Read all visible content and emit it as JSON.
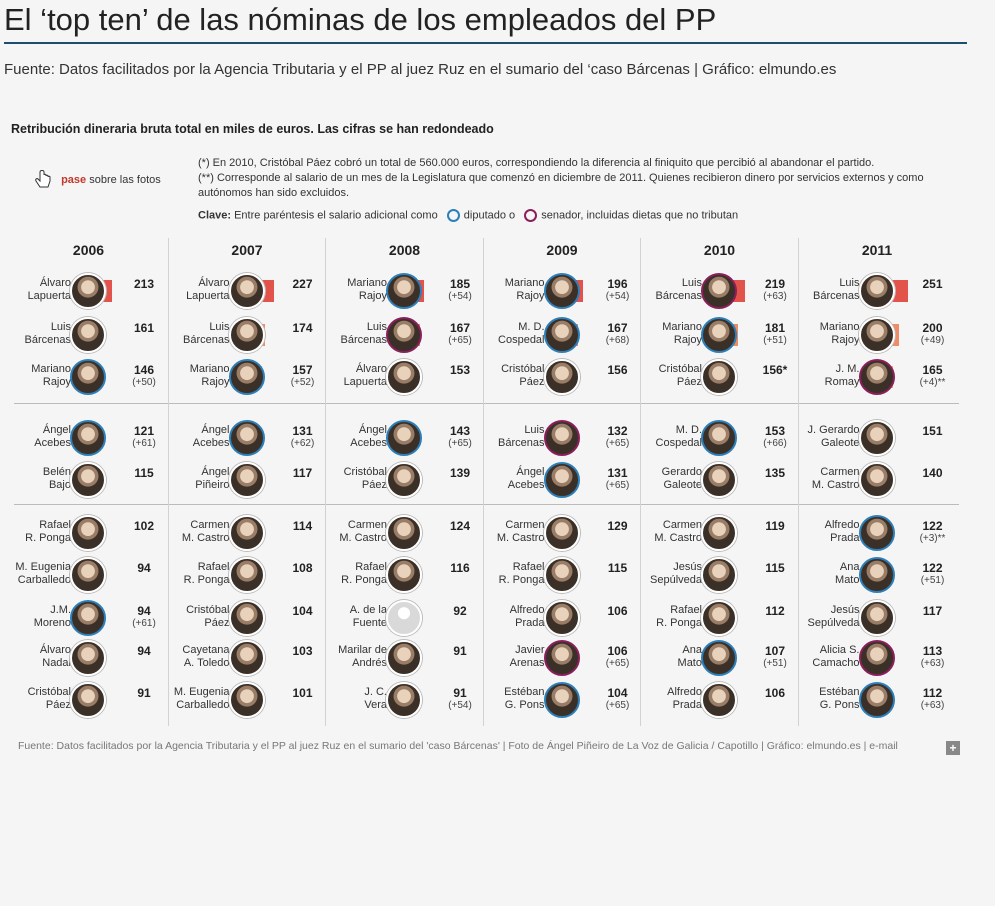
{
  "title": "El ‘top ten’ de las nóminas de los empleados del PP",
  "source_top": "Fuente: Datos facilitados por la Agencia Tributaria y el PP al juez Ruz en el sumario del ‘caso Bárcenas | Gráfico: elmundo.es",
  "subtitle": "Retribución dineraria bruta total en miles de euros. Las cifras se han redondeado",
  "hint": {
    "pase": "pase",
    "rest": "sobre las fotos"
  },
  "notes": [
    "(*) En 2010, Cristóbal Páez cobró un total de 560.000 euros, correspondiendo la diferencia al finiquito que percibió al abandonar el partido.",
    "(**) Corresponde al salario de un mes de la Legislatura que comenzó en diciembre de 2011. Quienes recibieron dinero por servicios externos y como autónomos han sido excluidos."
  ],
  "key": {
    "label": "Clave:",
    "text1": "Entre paréntesis el salario adicional como",
    "diputado": "diputado o",
    "senador": "senador, incluidas dietas que no tributan"
  },
  "footer": "Fuente: Datos facilitados por la Agencia Tributaria y el PP al juez Ruz en el sumario del 'caso Bárcenas' | Foto de Ángel Piñeiro de La Voz de Galicia / Capotillo | Gráfico: elmundo.es | e-mail",
  "plus_label": "+",
  "colors": {
    "rank1": "#e2534b",
    "rank2": "#ee8c68",
    "rank3": "#eab46a",
    "rank_other": "#9c8e80",
    "diputado": "#2c7fb8",
    "senador": "#8b1f5c",
    "rule": "#1f4d6e"
  },
  "chart_data": {
    "type": "bar",
    "unit": "miles de euros",
    "columns": [
      {
        "year": "2006",
        "entries": [
          {
            "name": "Álvaro\nLapuerta",
            "value": 213,
            "display": "213",
            "extra": "",
            "ring": ""
          },
          {
            "name": "Luis\nBárcenas",
            "value": 161,
            "display": "161",
            "extra": "",
            "ring": ""
          },
          {
            "name": "Mariano\nRajoy",
            "value": 146,
            "display": "146",
            "extra": "(+50)",
            "ring": "d"
          },
          {
            "name": "Ángel\nAcebes",
            "value": 121,
            "display": "121",
            "extra": "(+61)",
            "ring": "d"
          },
          {
            "name": "Belén\nBajo",
            "value": 115,
            "display": "115",
            "extra": "",
            "ring": ""
          },
          {
            "name": "Rafael\nR. Ponga",
            "value": 102,
            "display": "102",
            "extra": "",
            "ring": ""
          },
          {
            "name": "M. Eugenia\nCarballedo",
            "value": 94,
            "display": "94",
            "extra": "",
            "ring": ""
          },
          {
            "name": "J.M.\nMoreno",
            "value": 94,
            "display": "94",
            "extra": "(+61)",
            "ring": "d"
          },
          {
            "name": "Álvaro\nNadal",
            "value": 94,
            "display": "94",
            "extra": "",
            "ring": ""
          },
          {
            "name": "Cristóbal\nPáez",
            "value": 91,
            "display": "91",
            "extra": "",
            "ring": ""
          }
        ]
      },
      {
        "year": "2007",
        "entries": [
          {
            "name": "Álvaro\nLapuerta",
            "value": 227,
            "display": "227",
            "extra": "",
            "ring": ""
          },
          {
            "name": "Luis\nBárcenas",
            "value": 174,
            "display": "174",
            "extra": "",
            "ring": ""
          },
          {
            "name": "Mariano\nRajoy",
            "value": 157,
            "display": "157",
            "extra": "(+52)",
            "ring": "d"
          },
          {
            "name": "Ángel\nAcebes",
            "value": 131,
            "display": "131",
            "extra": "(+62)",
            "ring": "d"
          },
          {
            "name": "Ángel\nPiñeiro",
            "value": 117,
            "display": "117",
            "extra": "",
            "ring": ""
          },
          {
            "name": "Carmen\nM. Castro",
            "value": 114,
            "display": "114",
            "extra": "",
            "ring": ""
          },
          {
            "name": "Rafael\nR. Ponga",
            "value": 108,
            "display": "108",
            "extra": "",
            "ring": ""
          },
          {
            "name": "Cristóbal\nPáez",
            "value": 104,
            "display": "104",
            "extra": "",
            "ring": ""
          },
          {
            "name": "Cayetana\nA. Toledo",
            "value": 103,
            "display": "103",
            "extra": "",
            "ring": ""
          },
          {
            "name": "M. Eugenia\nCarballedo",
            "value": 101,
            "display": "101",
            "extra": "",
            "ring": ""
          }
        ]
      },
      {
        "year": "2008",
        "entries": [
          {
            "name": "Mariano\nRajoy",
            "value": 185,
            "display": "185",
            "extra": "(+54)",
            "ring": "d"
          },
          {
            "name": "Luis\nBárcenas",
            "value": 167,
            "display": "167",
            "extra": "(+65)",
            "ring": "s"
          },
          {
            "name": "Álvaro\nLapuerta",
            "value": 153,
            "display": "153",
            "extra": "",
            "ring": ""
          },
          {
            "name": "Ángel\nAcebes",
            "value": 143,
            "display": "143",
            "extra": "(+65)",
            "ring": "d"
          },
          {
            "name": "Cristóbal\nPáez",
            "value": 139,
            "display": "139",
            "extra": "",
            "ring": ""
          },
          {
            "name": "Carmen\nM. Castro",
            "value": 124,
            "display": "124",
            "extra": "",
            "ring": ""
          },
          {
            "name": "Rafael\nR. Ponga",
            "value": 116,
            "display": "116",
            "extra": "",
            "ring": ""
          },
          {
            "name": "A. de la\nFuente",
            "value": 92,
            "display": "92",
            "extra": "",
            "ring": "ph"
          },
          {
            "name": "Marilar de\nAndrés",
            "value": 91,
            "display": "91",
            "extra": "",
            "ring": ""
          },
          {
            "name": "J. C.\nVera",
            "value": 91,
            "display": "91",
            "extra": "(+54)",
            "ring": ""
          }
        ]
      },
      {
        "year": "2009",
        "entries": [
          {
            "name": "Mariano\nRajoy",
            "value": 196,
            "display": "196",
            "extra": "(+54)",
            "ring": "d"
          },
          {
            "name": "M. D.\nCospedal",
            "value": 167,
            "display": "167",
            "extra": "(+68)",
            "ring": "d"
          },
          {
            "name": "Cristóbal\nPáez",
            "value": 156,
            "display": "156",
            "extra": "",
            "ring": ""
          },
          {
            "name": "Luis\nBárcenas",
            "value": 132,
            "display": "132",
            "extra": "(+65)",
            "ring": "s"
          },
          {
            "name": "Ángel\nAcebes",
            "value": 131,
            "display": "131",
            "extra": "(+65)",
            "ring": "d"
          },
          {
            "name": "Carmen\nM. Castro",
            "value": 129,
            "display": "129",
            "extra": "",
            "ring": ""
          },
          {
            "name": "Rafael\nR. Ponga",
            "value": 115,
            "display": "115",
            "extra": "",
            "ring": ""
          },
          {
            "name": "Alfredo\nPrada",
            "value": 106,
            "display": "106",
            "extra": "",
            "ring": ""
          },
          {
            "name": "Javier\nArenas",
            "value": 106,
            "display": "106",
            "extra": "(+65)",
            "ring": "s"
          },
          {
            "name": "Estéban\nG. Pons",
            "value": 104,
            "display": "104",
            "extra": "(+65)",
            "ring": "d"
          }
        ]
      },
      {
        "year": "2010",
        "entries": [
          {
            "name": "Luis\nBárcenas",
            "value": 219,
            "display": "219",
            "extra": "(+63)",
            "ring": "s"
          },
          {
            "name": "Mariano\nRajoy",
            "value": 181,
            "display": "181",
            "extra": "(+51)",
            "ring": "d"
          },
          {
            "name": "Cristóbal\nPáez",
            "value": 156,
            "display": "156*",
            "extra": "",
            "ring": ""
          },
          {
            "name": "M. D.\nCospedal",
            "value": 153,
            "display": "153",
            "extra": "(+66)",
            "ring": "d"
          },
          {
            "name": "Gerardo\nGaleote",
            "value": 135,
            "display": "135",
            "extra": "",
            "ring": ""
          },
          {
            "name": "Carmen\nM. Castro",
            "value": 119,
            "display": "119",
            "extra": "",
            "ring": ""
          },
          {
            "name": "Jesús\nSepúlveda",
            "value": 115,
            "display": "115",
            "extra": "",
            "ring": ""
          },
          {
            "name": "Rafael\nR. Ponga",
            "value": 112,
            "display": "112",
            "extra": "",
            "ring": ""
          },
          {
            "name": "Ana\nMato",
            "value": 107,
            "display": "107",
            "extra": "(+51)",
            "ring": "d"
          },
          {
            "name": "Alfredo\nPrada",
            "value": 106,
            "display": "106",
            "extra": "",
            "ring": ""
          }
        ]
      },
      {
        "year": "2011",
        "entries": [
          {
            "name": "Luis\nBárcenas",
            "value": 251,
            "display": "251",
            "extra": "",
            "ring": ""
          },
          {
            "name": "Mariano\nRajoy",
            "value": 200,
            "display": "200",
            "extra": "(+49)",
            "ring": ""
          },
          {
            "name": "J. M.\nRomay",
            "value": 165,
            "display": "165",
            "extra": "(+4)**",
            "ring": "s"
          },
          {
            "name": "J. Gerardo\nGaleote",
            "value": 151,
            "display": "151",
            "extra": "",
            "ring": ""
          },
          {
            "name": "Carmen\nM. Castro",
            "value": 140,
            "display": "140",
            "extra": "",
            "ring": ""
          },
          {
            "name": "Alfredo\nPrada",
            "value": 122,
            "display": "122",
            "extra": "(+3)**",
            "ring": "d"
          },
          {
            "name": "Ana\nMato",
            "value": 122,
            "display": "122",
            "extra": "(+51)",
            "ring": "d"
          },
          {
            "name": "Jesús\nSepúlveda",
            "value": 117,
            "display": "117",
            "extra": "",
            "ring": ""
          },
          {
            "name": "Alicia S.\nCamacho",
            "value": 113,
            "display": "113",
            "extra": "(+63)",
            "ring": "s"
          },
          {
            "name": "Estéban\nG. Pons",
            "value": 112,
            "display": "112",
            "extra": "(+63)",
            "ring": "d"
          }
        ]
      }
    ]
  }
}
